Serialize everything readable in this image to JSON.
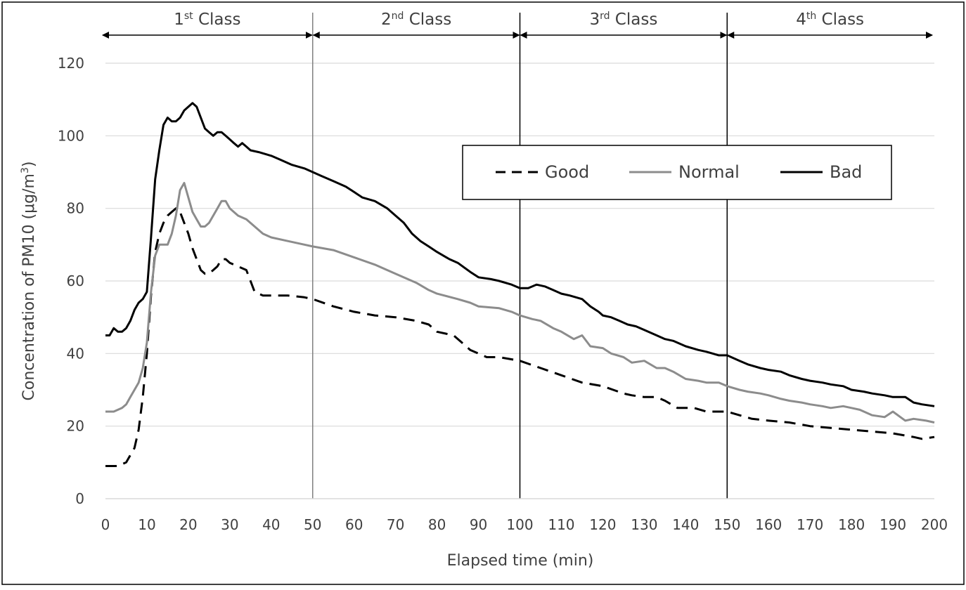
{
  "chart_data": {
    "type": "line",
    "title": "",
    "xlabel": "Elapsed time (min)",
    "ylabel_parts": {
      "main": "Concentration of PM10 (μg/m",
      "sup": "3",
      "end": ")"
    },
    "xlim": [
      0,
      200
    ],
    "ylim": [
      0,
      120
    ],
    "x_ticks": [
      0,
      10,
      20,
      30,
      40,
      50,
      60,
      70,
      80,
      90,
      100,
      110,
      120,
      130,
      140,
      150,
      160,
      170,
      180,
      190,
      200
    ],
    "y_ticks": [
      0,
      20,
      40,
      60,
      80,
      100,
      120
    ],
    "grid": "horizontal",
    "legend_placement": "top-right",
    "class_dividers": [
      50,
      100,
      150
    ],
    "class_bands": [
      {
        "start": 0,
        "end": 50,
        "num": "1",
        "sup": "st",
        "word": " Class"
      },
      {
        "start": 50,
        "end": 100,
        "num": "2",
        "sup": "nd",
        "word": " Class"
      },
      {
        "start": 100,
        "end": 150,
        "num": "3",
        "sup": "rd",
        "word": " Class"
      },
      {
        "start": 150,
        "end": 200,
        "num": "4",
        "sup": "th",
        "word": " Class"
      }
    ],
    "series": [
      {
        "name": "Good",
        "color": "#000000",
        "style": "dashed",
        "points": [
          [
            0,
            9
          ],
          [
            3,
            9
          ],
          [
            5,
            10
          ],
          [
            7,
            14
          ],
          [
            8,
            19
          ],
          [
            9,
            28
          ],
          [
            10,
            40
          ],
          [
            11,
            56
          ],
          [
            12,
            68
          ],
          [
            13,
            73
          ],
          [
            14,
            76
          ],
          [
            15,
            78
          ],
          [
            16,
            79
          ],
          [
            17,
            80
          ],
          [
            18,
            79
          ],
          [
            19,
            76
          ],
          [
            20,
            73
          ],
          [
            21,
            69
          ],
          [
            22,
            66
          ],
          [
            23,
            63
          ],
          [
            24,
            62
          ],
          [
            25,
            62
          ],
          [
            26,
            63
          ],
          [
            27,
            64
          ],
          [
            28,
            66
          ],
          [
            29,
            66
          ],
          [
            30,
            65
          ],
          [
            32,
            64
          ],
          [
            34,
            63
          ],
          [
            35,
            60
          ],
          [
            36,
            57
          ],
          [
            38,
            56
          ],
          [
            40,
            56
          ],
          [
            44,
            56
          ],
          [
            48,
            55.5
          ],
          [
            50,
            55
          ],
          [
            55,
            53
          ],
          [
            60,
            51.5
          ],
          [
            65,
            50.5
          ],
          [
            70,
            50
          ],
          [
            75,
            49
          ],
          [
            78,
            48
          ],
          [
            80,
            46
          ],
          [
            84,
            45
          ],
          [
            86,
            43
          ],
          [
            88,
            41
          ],
          [
            90,
            40
          ],
          [
            92,
            39
          ],
          [
            95,
            39
          ],
          [
            100,
            38
          ],
          [
            105,
            36
          ],
          [
            110,
            34
          ],
          [
            115,
            32
          ],
          [
            120,
            31
          ],
          [
            125,
            29
          ],
          [
            127,
            28.5
          ],
          [
            130,
            28
          ],
          [
            133,
            28
          ],
          [
            135,
            27
          ],
          [
            138,
            25
          ],
          [
            142,
            25
          ],
          [
            145,
            24
          ],
          [
            150,
            24
          ],
          [
            153,
            23
          ],
          [
            156,
            22
          ],
          [
            160,
            21.5
          ],
          [
            165,
            21
          ],
          [
            170,
            20
          ],
          [
            175,
            19.5
          ],
          [
            180,
            19
          ],
          [
            185,
            18.5
          ],
          [
            190,
            18
          ],
          [
            195,
            17
          ],
          [
            197,
            16.5
          ],
          [
            200,
            17
          ]
        ]
      },
      {
        "name": "Normal",
        "color": "#8c8c8c",
        "style": "solid",
        "points": [
          [
            0,
            24
          ],
          [
            2,
            24
          ],
          [
            4,
            25
          ],
          [
            5,
            26
          ],
          [
            6,
            28
          ],
          [
            7,
            30
          ],
          [
            8,
            32
          ],
          [
            9,
            36
          ],
          [
            10,
            43
          ],
          [
            11,
            57
          ],
          [
            12,
            67
          ],
          [
            13,
            70
          ],
          [
            14,
            70
          ],
          [
            15,
            70
          ],
          [
            16,
            73
          ],
          [
            17,
            78
          ],
          [
            18,
            85
          ],
          [
            19,
            87
          ],
          [
            20,
            83
          ],
          [
            21,
            79
          ],
          [
            22,
            77
          ],
          [
            23,
            75
          ],
          [
            24,
            75
          ],
          [
            25,
            76
          ],
          [
            26,
            78
          ],
          [
            27,
            80
          ],
          [
            28,
            82
          ],
          [
            29,
            82
          ],
          [
            30,
            80
          ],
          [
            32,
            78
          ],
          [
            34,
            77
          ],
          [
            36,
            75
          ],
          [
            38,
            73
          ],
          [
            40,
            72
          ],
          [
            44,
            71
          ],
          [
            48,
            70
          ],
          [
            50,
            69.5
          ],
          [
            55,
            68.5
          ],
          [
            60,
            66.5
          ],
          [
            65,
            64.5
          ],
          [
            70,
            62
          ],
          [
            75,
            59.5
          ],
          [
            78,
            57.5
          ],
          [
            80,
            56.5
          ],
          [
            85,
            55
          ],
          [
            88,
            54
          ],
          [
            90,
            53
          ],
          [
            95,
            52.5
          ],
          [
            98,
            51.5
          ],
          [
            100,
            50.5
          ],
          [
            103,
            49.5
          ],
          [
            105,
            49
          ],
          [
            108,
            47
          ],
          [
            110,
            46
          ],
          [
            113,
            44
          ],
          [
            115,
            45
          ],
          [
            117,
            42
          ],
          [
            120,
            41.5
          ],
          [
            122,
            40
          ],
          [
            125,
            39
          ],
          [
            127,
            37.5
          ],
          [
            130,
            38
          ],
          [
            133,
            36
          ],
          [
            135,
            36
          ],
          [
            137,
            35
          ],
          [
            140,
            33
          ],
          [
            143,
            32.5
          ],
          [
            145,
            32
          ],
          [
            148,
            32
          ],
          [
            150,
            31
          ],
          [
            153,
            30
          ],
          [
            155,
            29.5
          ],
          [
            158,
            29
          ],
          [
            160,
            28.5
          ],
          [
            163,
            27.5
          ],
          [
            165,
            27
          ],
          [
            168,
            26.5
          ],
          [
            170,
            26
          ],
          [
            173,
            25.5
          ],
          [
            175,
            25
          ],
          [
            178,
            25.5
          ],
          [
            180,
            25
          ],
          [
            182,
            24.5
          ],
          [
            185,
            23
          ],
          [
            188,
            22.5
          ],
          [
            190,
            24
          ],
          [
            193,
            21.5
          ],
          [
            195,
            22
          ],
          [
            198,
            21.5
          ],
          [
            200,
            21
          ]
        ]
      },
      {
        "name": "Bad",
        "color": "#000000",
        "style": "solid",
        "points": [
          [
            0,
            45
          ],
          [
            1,
            45
          ],
          [
            2,
            47
          ],
          [
            3,
            46
          ],
          [
            4,
            46
          ],
          [
            5,
            47
          ],
          [
            6,
            49
          ],
          [
            7,
            52
          ],
          [
            8,
            54
          ],
          [
            9,
            55
          ],
          [
            10,
            57
          ],
          [
            11,
            72
          ],
          [
            12,
            88
          ],
          [
            13,
            96
          ],
          [
            14,
            103
          ],
          [
            15,
            105
          ],
          [
            16,
            104
          ],
          [
            17,
            104
          ],
          [
            18,
            105
          ],
          [
            19,
            107
          ],
          [
            20,
            108
          ],
          [
            21,
            109
          ],
          [
            22,
            108
          ],
          [
            23,
            105
          ],
          [
            24,
            102
          ],
          [
            25,
            101
          ],
          [
            26,
            100
          ],
          [
            27,
            101
          ],
          [
            28,
            101
          ],
          [
            29,
            100
          ],
          [
            30,
            99
          ],
          [
            31,
            98
          ],
          [
            32,
            97
          ],
          [
            33,
            98
          ],
          [
            34,
            97
          ],
          [
            35,
            96
          ],
          [
            37,
            95.5
          ],
          [
            40,
            94.5
          ],
          [
            42,
            93.5
          ],
          [
            45,
            92
          ],
          [
            48,
            91
          ],
          [
            50,
            90
          ],
          [
            52,
            89
          ],
          [
            55,
            87.5
          ],
          [
            58,
            86
          ],
          [
            60,
            84.5
          ],
          [
            62,
            83
          ],
          [
            65,
            82
          ],
          [
            68,
            80
          ],
          [
            70,
            78
          ],
          [
            72,
            76
          ],
          [
            74,
            73
          ],
          [
            76,
            71
          ],
          [
            78,
            69.5
          ],
          [
            80,
            68
          ],
          [
            83,
            66
          ],
          [
            85,
            65
          ],
          [
            88,
            62.5
          ],
          [
            90,
            61
          ],
          [
            93,
            60.5
          ],
          [
            95,
            60
          ],
          [
            98,
            59
          ],
          [
            100,
            58
          ],
          [
            102,
            58
          ],
          [
            104,
            59
          ],
          [
            106,
            58.5
          ],
          [
            108,
            57.5
          ],
          [
            110,
            56.5
          ],
          [
            112,
            56
          ],
          [
            115,
            55
          ],
          [
            117,
            53
          ],
          [
            119,
            51.5
          ],
          [
            120,
            50.5
          ],
          [
            122,
            50
          ],
          [
            124,
            49
          ],
          [
            126,
            48
          ],
          [
            128,
            47.5
          ],
          [
            130,
            46.5
          ],
          [
            133,
            45
          ],
          [
            135,
            44
          ],
          [
            137,
            43.5
          ],
          [
            140,
            42
          ],
          [
            143,
            41
          ],
          [
            145,
            40.5
          ],
          [
            148,
            39.5
          ],
          [
            150,
            39.5
          ],
          [
            153,
            38
          ],
          [
            155,
            37
          ],
          [
            158,
            36
          ],
          [
            160,
            35.5
          ],
          [
            163,
            35
          ],
          [
            165,
            34
          ],
          [
            168,
            33
          ],
          [
            170,
            32.5
          ],
          [
            173,
            32
          ],
          [
            175,
            31.5
          ],
          [
            178,
            31
          ],
          [
            180,
            30
          ],
          [
            183,
            29.5
          ],
          [
            185,
            29
          ],
          [
            188,
            28.5
          ],
          [
            190,
            28
          ],
          [
            193,
            28
          ],
          [
            195,
            26.5
          ],
          [
            197,
            26
          ],
          [
            200,
            25.5
          ]
        ]
      }
    ]
  }
}
